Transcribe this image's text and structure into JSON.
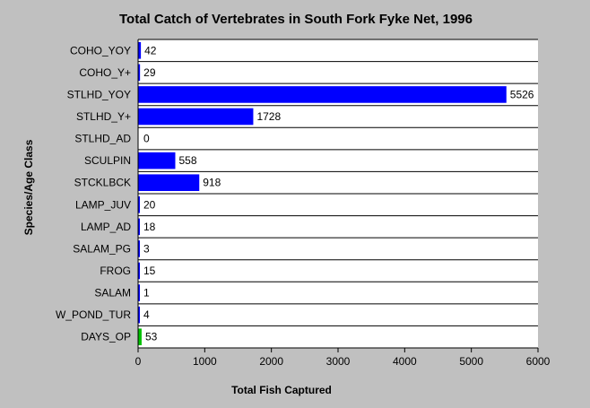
{
  "chart_data": {
    "type": "bar",
    "orientation": "horizontal",
    "title": "Total Catch of Vertebrates in South Fork Fyke Net, 1996",
    "xlabel": "Total Fish Captured",
    "ylabel": "Species/Age Class",
    "xlim": [
      0,
      6000
    ],
    "xticks": [
      0,
      1000,
      2000,
      3000,
      4000,
      5000,
      6000
    ],
    "categories": [
      "COHO_YOY",
      "COHO_Y+",
      "STLHD_YOY",
      "STLHD_Y+",
      "STLHD_AD",
      "SCULPIN",
      "STCKLBCK",
      "LAMP_JUV",
      "LAMP_AD",
      "SALAM_PG",
      "FROG",
      "SALAM",
      "W_POND_TUR",
      "DAYS_OP"
    ],
    "values": [
      42,
      29,
      5526,
      1728,
      0,
      558,
      918,
      20,
      18,
      3,
      15,
      1,
      4,
      53
    ],
    "bar_colors": [
      "#0000ff",
      "#0000ff",
      "#0000ff",
      "#0000ff",
      "#0000ff",
      "#0000ff",
      "#0000ff",
      "#0000ff",
      "#0000ff",
      "#0000ff",
      "#0000ff",
      "#0000ff",
      "#0000ff",
      "#00c000"
    ],
    "background_color": "#c0c0c0",
    "plot_background": "#ffffff",
    "grid": false,
    "legend": "none"
  }
}
